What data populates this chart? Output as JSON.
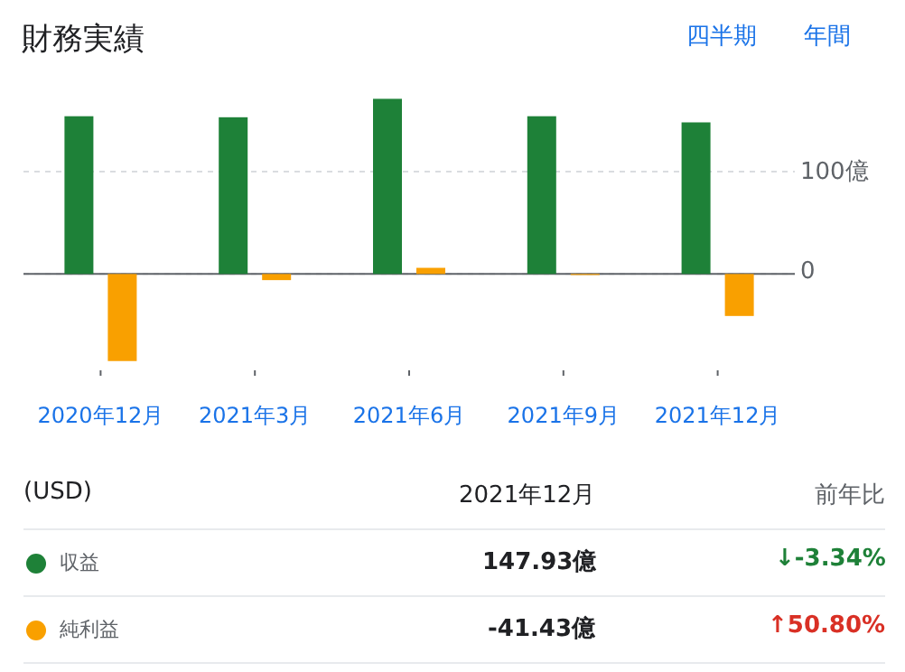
{
  "chart_data": {
    "type": "bar",
    "title": "財務実績",
    "categories": [
      "2020年12月",
      "2021年3月",
      "2021年6月",
      "2021年9月",
      "2021年12月"
    ],
    "series": [
      {
        "name": "収益",
        "color": "#1e8138",
        "values": [
          154,
          153,
          171,
          154,
          148
        ]
      },
      {
        "name": "純利益",
        "color": "#f9a000",
        "values": [
          -85,
          -6,
          6,
          -1,
          -41
        ]
      }
    ],
    "ylim": [
      -90,
      180
    ],
    "yticks": [
      0,
      {
        "value": 100,
        "label": "100億"
      }
    ],
    "grid": "y",
    "legend": "bottom",
    "annotations": [
      "四半期",
      "年間",
      "(USD)",
      "2021年12月",
      "前年比",
      "147.93億",
      "↓-3.34%",
      "-41.43億",
      "↑50.80%"
    ]
  }
}
